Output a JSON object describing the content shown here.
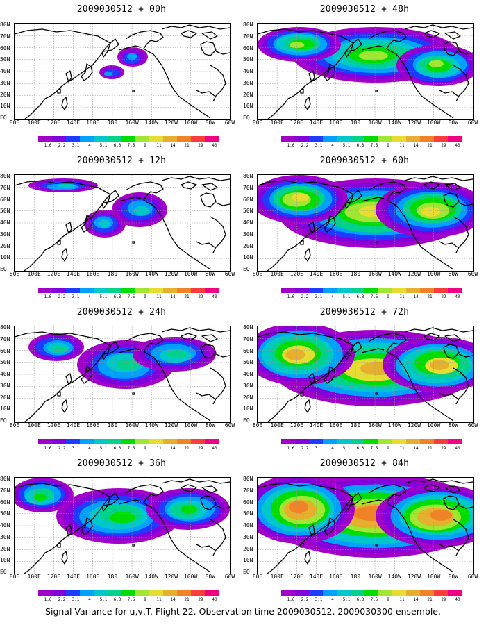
{
  "figure": {
    "caption": "Signal Variance for u,v,T. Flight 22. Observation time 2009030512. 2009030300 ensemble."
  },
  "lat_labels": [
    "80N",
    "70N",
    "60N",
    "50N",
    "40N",
    "30N",
    "20N",
    "10N",
    "EQ"
  ],
  "lon_labels": [
    "80E",
    "100E",
    "120E",
    "140E",
    "160E",
    "180",
    "160W",
    "140W",
    "120W",
    "100W",
    "80W",
    "60W"
  ],
  "colorbar": {
    "values": [
      "1.6",
      "2.2",
      "3.1",
      "4",
      "5.1",
      "6.3",
      "7.5",
      "9",
      "11",
      "14",
      "21",
      "29",
      "40"
    ],
    "colors": [
      "#a000c8",
      "#8200dc",
      "#1e3cff",
      "#00a0ff",
      "#00c8c8",
      "#00d28c",
      "#00dc00",
      "#a0e632",
      "#e6dc32",
      "#e6af2d",
      "#f08228",
      "#fa3c3c",
      "#f00082"
    ]
  },
  "panels": [
    {
      "title": "2009030512 + 00h",
      "level": 0
    },
    {
      "title": "2009030512 + 12h",
      "level": 1
    },
    {
      "title": "2009030512 + 24h",
      "level": 2
    },
    {
      "title": "2009030512 + 36h",
      "level": 3
    },
    {
      "title": "2009030512 + 48h",
      "level": 4
    },
    {
      "title": "2009030512 + 60h",
      "level": 5
    },
    {
      "title": "2009030512 + 72h",
      "level": 6
    },
    {
      "title": "2009030512 + 84h",
      "level": 7
    }
  ]
}
